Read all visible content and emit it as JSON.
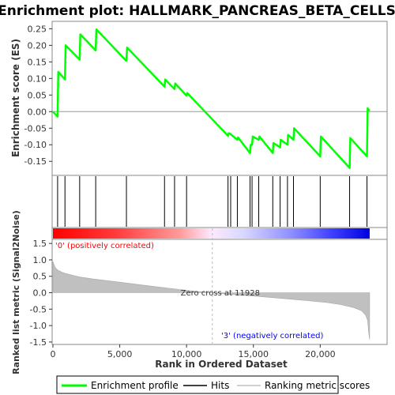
{
  "chart_data": {
    "type": "line",
    "title": "Enrichment plot: HALLMARK_PANCREAS_BETA_CELLS",
    "panels": {
      "enrichment": {
        "ylabel": "Enrichment score (ES)",
        "ylim": [
          -0.19,
          0.27
        ],
        "yticks": [
          -0.15,
          -0.1,
          -0.05,
          0.0,
          0.05,
          0.1,
          0.15,
          0.2,
          0.25
        ],
        "ytick_labels": [
          "-0.15",
          "-0.10",
          "-0.05",
          "0.00",
          "0.05",
          "0.10",
          "0.15",
          "0.20",
          "0.25"
        ],
        "series": [
          {
            "name": "Enrichment profile",
            "color": "#00ff00",
            "x": [
              0,
              350,
              400,
              900,
              950,
              2000,
              2050,
              3200,
              3250,
              5500,
              5550,
              8350,
              8400,
              9100,
              9150,
              10000,
              10050,
              13100,
              13150,
              13300,
              13350,
              13800,
              13850,
              14750,
              14800,
              14900,
              14950,
              15400,
              15450,
              16450,
              16500,
              17000,
              17050,
              17550,
              17600,
              18000,
              18050,
              20000,
              20050,
              22200,
              22250,
              23500,
              23550,
              23700
            ],
            "y": [
              0.0,
              -0.015,
              0.12,
              0.097,
              0.2,
              0.157,
              0.233,
              0.185,
              0.248,
              0.153,
              0.193,
              0.075,
              0.097,
              0.068,
              0.085,
              0.048,
              0.056,
              -0.073,
              -0.065,
              -0.068,
              -0.07,
              -0.085,
              -0.078,
              -0.125,
              -0.1,
              -0.1,
              -0.075,
              -0.085,
              -0.075,
              -0.125,
              -0.095,
              -0.108,
              -0.085,
              -0.1,
              -0.07,
              -0.085,
              -0.05,
              -0.135,
              -0.075,
              -0.17,
              -0.08,
              -0.135,
              0.01,
              0.002
            ]
          }
        ]
      },
      "hits": {
        "name": "Hits",
        "x": [
          350,
          900,
          2000,
          3200,
          5500,
          8350,
          9100,
          10000,
          13100,
          13300,
          13800,
          14750,
          14900,
          15400,
          16450,
          17000,
          17550,
          18000,
          20000,
          22200,
          23500
        ]
      },
      "ranking": {
        "name": "Ranking metric scores",
        "ylabel": "Ranked list metric (Signal2Noise)",
        "xlabel": "Rank in Ordered Dataset",
        "xlim": [
          0,
          24000
        ],
        "ylim": [
          -1.55,
          1.6
        ],
        "xticks": [
          0,
          5000,
          10000,
          15000,
          20000
        ],
        "xtick_labels": [
          "0",
          "5,000",
          "10,000",
          "15,000",
          "20,000"
        ],
        "yticks": [
          -1.5,
          -1.0,
          -0.5,
          0.0,
          0.5,
          1.0,
          1.5
        ],
        "ytick_labels": [
          "-1.5",
          "-1.0",
          "-0.5",
          "0.0",
          "0.5",
          "1.0",
          "1.5"
        ],
        "x": [
          0,
          80,
          200,
          400,
          700,
          1000,
          1500,
          2000,
          3000,
          5000,
          7000,
          9000,
          10500,
          11928,
          13000,
          15000,
          17000,
          19000,
          20500,
          21500,
          22500,
          23100,
          23400,
          23550,
          23620,
          23700
        ],
        "y": [
          0.95,
          0.85,
          0.75,
          0.68,
          0.62,
          0.58,
          0.53,
          0.48,
          0.42,
          0.32,
          0.22,
          0.12,
          0.05,
          0.0,
          -0.04,
          -0.1,
          -0.17,
          -0.24,
          -0.3,
          -0.36,
          -0.45,
          -0.55,
          -0.68,
          -0.85,
          -1.2,
          -1.42
        ],
        "zero_cross_label": "Zero cross at 11928",
        "zero_cross_x": 11928,
        "pos_label": "'0' (positively correlated)",
        "neg_label": "'3' (negatively correlated)"
      }
    },
    "legend": {
      "position": "bottom",
      "entries": [
        "Enrichment profile",
        "Hits",
        "Ranking metric scores"
      ]
    },
    "colors": {
      "profile": "#00ff00",
      "hit": "#000000",
      "ranking_fill": "#c0c0c0",
      "positive": "#ff0000",
      "negative": "#0000ff",
      "pos_text": "#ff0000",
      "neg_text": "#0000ff"
    }
  }
}
